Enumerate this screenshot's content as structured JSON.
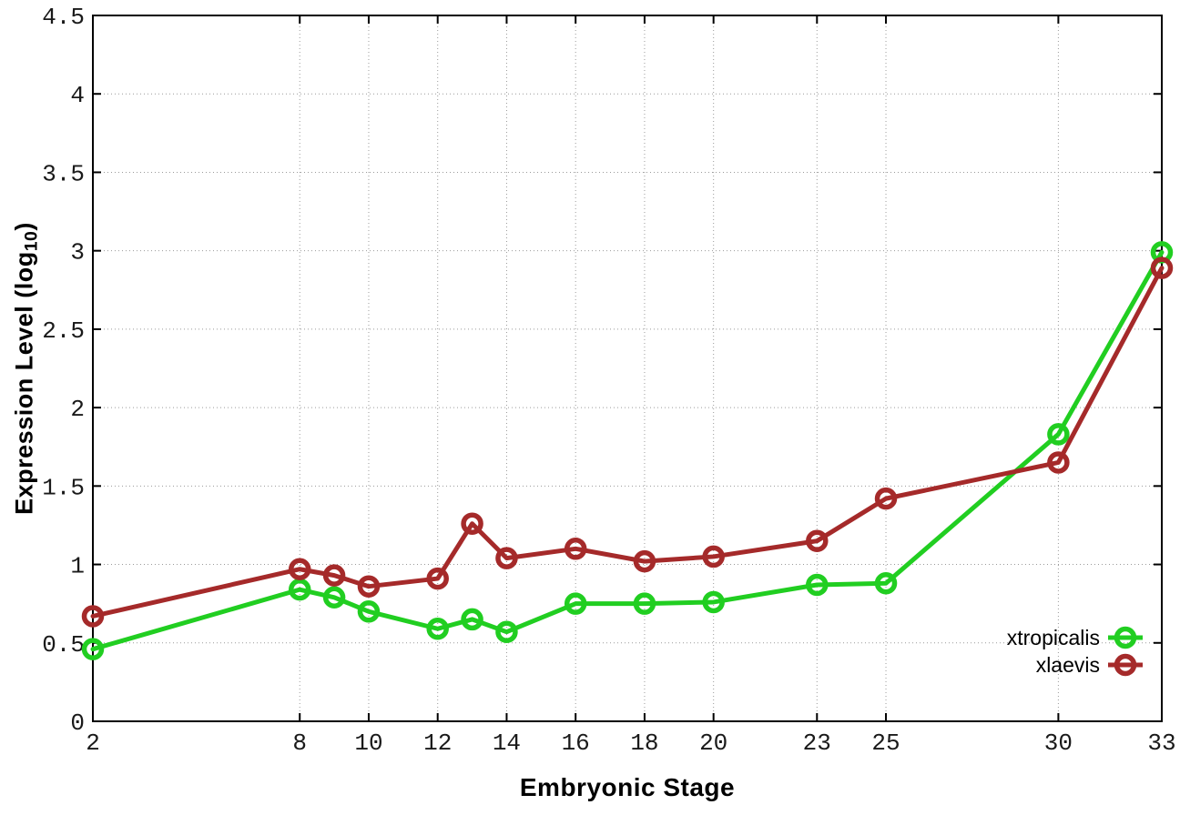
{
  "figure": {
    "xlabel": "Embryonic Stage",
    "ylabel_main": "Expression Level (log",
    "ylabel_sub": "10",
    "ylabel_close": ")"
  },
  "chart_data": {
    "type": "line",
    "title": "",
    "xlabel": "Embryonic Stage",
    "ylabel": "Expression Level (log10)",
    "xlim": [
      2,
      33
    ],
    "ylim": [
      0,
      4.5
    ],
    "grid": true,
    "grid_style": "dotted",
    "legend_position": "inside-bottom-right",
    "background_color": "#ffffff",
    "axis_color": "#000000",
    "x": [
      2,
      8,
      9,
      10,
      12,
      13,
      14,
      16,
      18,
      20,
      23,
      25,
      30,
      33
    ],
    "xticks": [
      2,
      8,
      10,
      12,
      14,
      16,
      18,
      20,
      23,
      25,
      30,
      33
    ],
    "xtick_labels": [
      "2",
      "8",
      "10",
      "12",
      "14",
      "16",
      "18",
      "20",
      "23",
      "25",
      "30",
      "33"
    ],
    "yticks": [
      0,
      0.5,
      1,
      1.5,
      2,
      2.5,
      3,
      3.5,
      4,
      4.5
    ],
    "ytick_labels": [
      "0",
      "0.5",
      "1",
      "1.5",
      "2",
      "2.5",
      "3",
      "3.5",
      "4",
      "4.5"
    ],
    "series": [
      {
        "name": "xtropicalis",
        "color": "#21CE21",
        "marker": "open-circle",
        "values": [
          0.46,
          0.84,
          0.79,
          0.7,
          0.59,
          0.65,
          0.57,
          0.75,
          0.75,
          0.76,
          0.87,
          0.88,
          1.83,
          2.99
        ]
      },
      {
        "name": "xlaevis",
        "color": "#A52A2A",
        "marker": "open-circle",
        "values": [
          0.67,
          0.97,
          0.93,
          0.86,
          0.91,
          1.26,
          1.04,
          1.1,
          1.02,
          1.05,
          1.15,
          1.42,
          1.65,
          2.89
        ]
      }
    ]
  }
}
